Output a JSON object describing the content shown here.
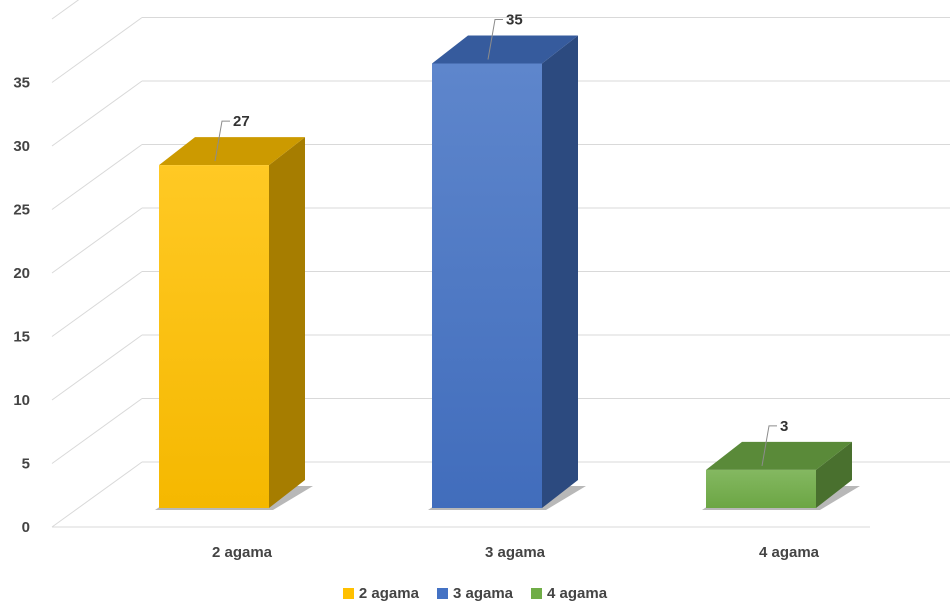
{
  "chart_data": {
    "type": "bar",
    "categories": [
      "2 agama",
      "3 agama",
      "4 agama"
    ],
    "values": [
      27,
      35,
      3
    ],
    "colors": [
      "#ffc000",
      "#4472c4",
      "#70ad47"
    ],
    "y_ticks": [
      0,
      5,
      10,
      15,
      20,
      25,
      30,
      35
    ],
    "ylim": [
      0,
      40
    ],
    "grid": true,
    "legend_position": "bottom",
    "style": "3d-column"
  },
  "legend": {
    "items": [
      {
        "label": "2 agama",
        "color": "#ffc000"
      },
      {
        "label": "3 agama",
        "color": "#4472c4"
      },
      {
        "label": "4 agama",
        "color": "#70ad47"
      }
    ]
  }
}
